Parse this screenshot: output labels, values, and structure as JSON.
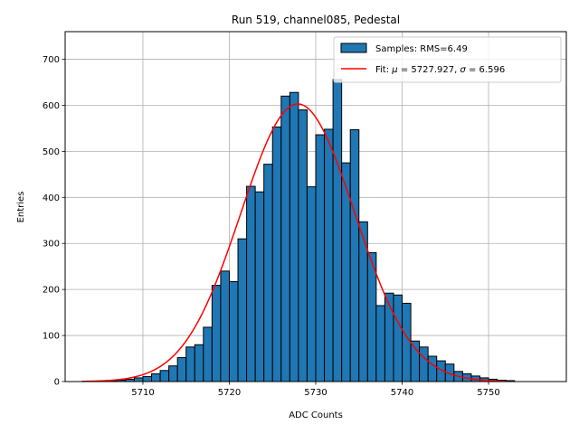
{
  "chart_data": {
    "type": "bar",
    "title": "Run 519, channel085, Pedestal",
    "xlabel": "ADC Counts",
    "ylabel": "Entries",
    "xlim": [
      5701,
      5759
    ],
    "ylim": [
      0,
      760
    ],
    "grid": true,
    "legend_placement": "top-right",
    "x_ticks": [
      5710,
      5720,
      5730,
      5740,
      5750
    ],
    "y_ticks": [
      0,
      100,
      200,
      300,
      400,
      500,
      600,
      700
    ],
    "histogram": {
      "name": "Samples: RMS=6.49",
      "color": "#1f77b4",
      "bin_width": 1,
      "bin_starts": [
        5703,
        5704,
        5705,
        5706,
        5707,
        5708,
        5709,
        5710,
        5711,
        5712,
        5713,
        5714,
        5715,
        5716,
        5717,
        5718,
        5719,
        5720,
        5721,
        5722,
        5723,
        5724,
        5725,
        5726,
        5727,
        5728,
        5729,
        5730,
        5731,
        5732,
        5733,
        5734,
        5735,
        5736,
        5737,
        5738,
        5739,
        5740,
        5741,
        5742,
        5743,
        5744,
        5745,
        5746,
        5747,
        5748,
        5749,
        5750,
        5751,
        5752
      ],
      "counts": [
        1,
        1,
        1,
        2,
        3,
        5,
        8,
        11,
        17,
        24,
        34,
        52,
        75,
        80,
        118,
        209,
        240,
        217,
        310,
        424,
        412,
        472,
        553,
        620,
        628,
        590,
        423,
        536,
        548,
        656,
        475,
        547,
        347,
        280,
        165,
        192,
        188,
        170,
        88,
        75,
        55,
        45,
        38,
        22,
        17,
        12,
        8,
        5,
        3,
        2
      ]
    },
    "fit": {
      "name": "Fit: μ = 5727.927, σ = 6.596",
      "color": "#ff0000",
      "mu": 5727.927,
      "sigma": 6.596,
      "amplitude": 603,
      "x_range": [
        5703,
        5752
      ]
    }
  },
  "legend": {
    "samples_label": "Samples: RMS=6.49",
    "fit_label_prefix": "Fit: ",
    "fit_mu_symbol": "μ",
    "fit_mid": " = 5727.927, ",
    "fit_sigma_symbol": "σ",
    "fit_end": " = 6.596"
  }
}
